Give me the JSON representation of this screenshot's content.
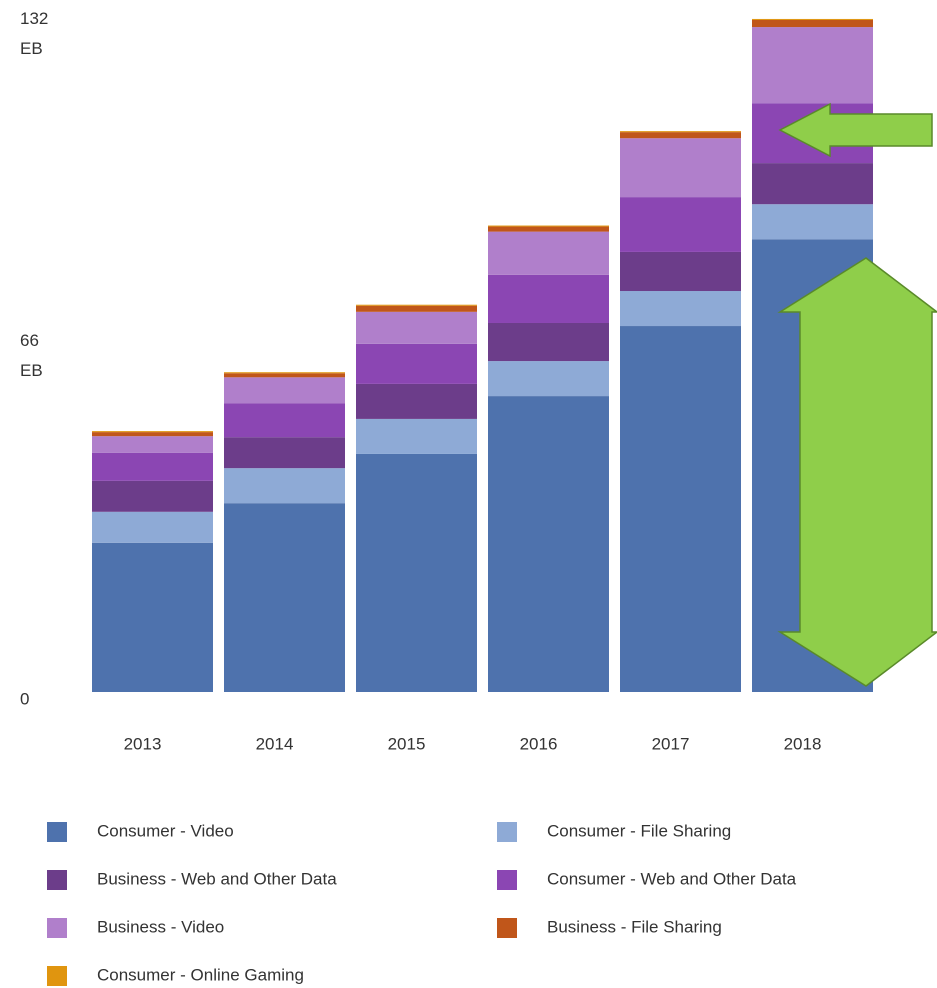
{
  "chart_data": {
    "type": "stacked_bar",
    "categories": [
      "2013",
      "2014",
      "2015",
      "2016",
      "2017",
      "2018"
    ],
    "series": [
      {
        "name": "Consumer - Video",
        "color": "#4e72ad",
        "values": [
          29.4,
          37.2,
          46.9,
          58.3,
          72.1,
          89.2
        ]
      },
      {
        "name": "Consumer - File Sharing",
        "color": "#8eaad6",
        "values": [
          6.1,
          6.9,
          6.9,
          6.9,
          6.9,
          6.9
        ]
      },
      {
        "name": "Business - Web and Other Data",
        "color": "#6c3d8a",
        "values": [
          6.1,
          6.1,
          6.9,
          7.5,
          7.7,
          8.1
        ]
      },
      {
        "name": "Consumer - Web and Other Data",
        "color": "#8b46b3",
        "values": [
          5.5,
          6.7,
          7.9,
          9.5,
          10.8,
          11.8
        ]
      },
      {
        "name": "Business - Video",
        "color": "#b07fcb",
        "values": [
          3.3,
          5.1,
          6.3,
          8.5,
          11.6,
          15.0
        ]
      },
      {
        "name": "Business - File Sharing",
        "color": "#c0561a",
        "values": [
          0.8,
          0.8,
          1.2,
          1.0,
          1.2,
          1.4
        ]
      },
      {
        "name": "Consumer - Online Gaming",
        "color": "#e0950f",
        "values": [
          0.2,
          0.2,
          0.2,
          0.2,
          0.2,
          0.2
        ]
      }
    ],
    "ylim": [
      0,
      132
    ],
    "yticks": [
      0,
      {
        "value": 66,
        "label": "66 EB"
      },
      {
        "value": 132,
        "label": "132 EB"
      }
    ],
    "grid": false
  }
}
